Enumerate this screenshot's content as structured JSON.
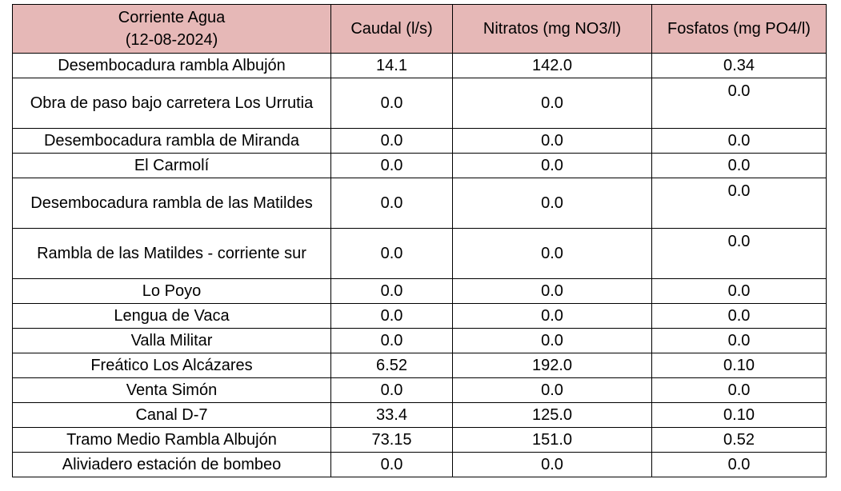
{
  "table": {
    "headers": {
      "location_line1": "Corriente Agua",
      "location_line2": "(12-08-2024)",
      "flow": "Caudal (l/s)",
      "nitrates": "Nitratos (mg NO3/l)",
      "phosphates": "Fosfatos (mg PO4/l)"
    },
    "rows": [
      {
        "location": "Desembocadura rambla Albujón",
        "flow": "14.1",
        "nitrates": "142.0",
        "phosphates": "0.34"
      },
      {
        "location": "Obra de paso bajo carretera Los Urrutia",
        "flow": "0.0",
        "nitrates": "0.0",
        "phosphates": "0.0"
      },
      {
        "location": "Desembocadura rambla de Miranda",
        "flow": "0.0",
        "nitrates": "0.0",
        "phosphates": "0.0"
      },
      {
        "location": "El Carmolí",
        "flow": "0.0",
        "nitrates": "0.0",
        "phosphates": "0.0"
      },
      {
        "location": "Desembocadura rambla de las Matildes",
        "flow": "0.0",
        "nitrates": "0.0",
        "phosphates": "0.0"
      },
      {
        "location": "Rambla de las Matildes - corriente sur",
        "flow": "0.0",
        "nitrates": "0.0",
        "phosphates": "0.0"
      },
      {
        "location": "Lo Poyo",
        "flow": "0.0",
        "nitrates": "0.0",
        "phosphates": "0.0"
      },
      {
        "location": "Lengua de Vaca",
        "flow": "0.0",
        "nitrates": "0.0",
        "phosphates": "0.0"
      },
      {
        "location": "Valla Militar",
        "flow": "0.0",
        "nitrates": "0.0",
        "phosphates": "0.0"
      },
      {
        "location": "Freático Los Alcázares",
        "flow": "6.52",
        "nitrates": "192.0",
        "phosphates": "0.10"
      },
      {
        "location": "Venta Simón",
        "flow": "0.0",
        "nitrates": "0.0",
        "phosphates": "0.0"
      },
      {
        "location": "Canal D-7",
        "flow": "33.4",
        "nitrates": "125.0",
        "phosphates": "0.10"
      },
      {
        "location": "Tramo Medio Rambla Albujón",
        "flow": "73.15",
        "nitrates": "151.0",
        "phosphates": "0.52"
      },
      {
        "location": "Aliviadero estación de bombeo",
        "flow": "0.0",
        "nitrates": "0.0",
        "phosphates": "0.0"
      }
    ]
  }
}
